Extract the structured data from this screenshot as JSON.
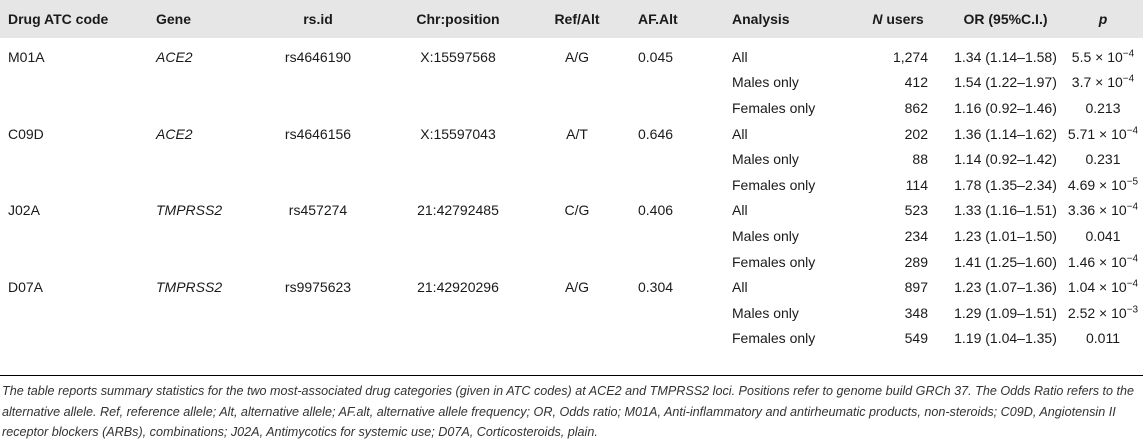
{
  "headers": {
    "drug": "Drug ATC code",
    "gene": "Gene",
    "rsid": "rs.id",
    "chrpos": "Chr:position",
    "refalt": "Ref/Alt",
    "afalt": "AF.Alt",
    "analysis": "Analysis",
    "nusers_n": "N",
    "nusers_rest": " users",
    "or": "OR (95%C.I.)",
    "p": "p"
  },
  "groups": [
    {
      "drug": "M01A",
      "gene": "ACE2",
      "rsid": "rs4646190",
      "chrpos": "X:15597568",
      "refalt": "A/G",
      "afalt": "0.045",
      "rows": [
        {
          "analysis": "All",
          "n": "1,274",
          "or": "1.34 (1.14–1.58)",
          "p": "5.5 × 10",
          "p_exp": "−4"
        },
        {
          "analysis": "Males only",
          "n": "412",
          "or": "1.54 (1.22–1.97)",
          "p": "3.7 × 10",
          "p_exp": "−4"
        },
        {
          "analysis": "Females only",
          "n": "862",
          "or": "1.16 (0.92–1.46)",
          "p": "0.213",
          "p_exp": ""
        }
      ]
    },
    {
      "drug": "C09D",
      "gene": "ACE2",
      "rsid": "rs4646156",
      "chrpos": "X:15597043",
      "refalt": "A/T",
      "afalt": "0.646",
      "rows": [
        {
          "analysis": "All",
          "n": "202",
          "or": "1.36 (1.14–1.62)",
          "p": "5.71 × 10",
          "p_exp": "−4"
        },
        {
          "analysis": "Males only",
          "n": "88",
          "or": "1.14 (0.92–1.42)",
          "p": "0.231",
          "p_exp": ""
        },
        {
          "analysis": "Females only",
          "n": "114",
          "or": "1.78 (1.35–2.34)",
          "p": "4.69 × 10",
          "p_exp": "−5"
        }
      ]
    },
    {
      "drug": "J02A",
      "gene": "TMPRSS2",
      "rsid": "rs457274",
      "chrpos": "21:42792485",
      "refalt": "C/G",
      "afalt": "0.406",
      "rows": [
        {
          "analysis": "All",
          "n": "523",
          "or": "1.33 (1.16–1.51)",
          "p": "3.36 × 10",
          "p_exp": "−4"
        },
        {
          "analysis": "Males only",
          "n": "234",
          "or": "1.23 (1.01–1.50)",
          "p": "0.041",
          "p_exp": ""
        },
        {
          "analysis": "Females only",
          "n": "289",
          "or": "1.41 (1.25–1.60)",
          "p": "1.46 × 10",
          "p_exp": "−4"
        }
      ]
    },
    {
      "drug": "D07A",
      "gene": "TMPRSS2",
      "rsid": "rs9975623",
      "chrpos": "21:42920296",
      "refalt": "A/G",
      "afalt": "0.304",
      "rows": [
        {
          "analysis": "All",
          "n": "897",
          "or": "1.23 (1.07–1.36)",
          "p": "1.04 × 10",
          "p_exp": "−4"
        },
        {
          "analysis": "Males only",
          "n": "348",
          "or": "1.29 (1.09–1.51)",
          "p": "2.52 × 10",
          "p_exp": "−3"
        },
        {
          "analysis": "Females only",
          "n": "549",
          "or": "1.19 (1.04–1.35)",
          "p": "0.011",
          "p_exp": ""
        }
      ]
    }
  ],
  "caption": "The table reports summary statistics for the two most-associated drug categories (given in ATC codes) at ACE2 and TMPRSS2 loci. Positions refer to genome build GRCh 37. The Odds Ratio refers to the alternative allele. Ref, reference allele; Alt, alternative allele; AF.alt, alternative allele frequency; OR, Odds ratio; M01A, Anti-inflammatory and antirheumatic products, non-steroids; C09D, Angiotensin II receptor blockers (ARBs), combinations; J02A, Antimycotics for systemic use; D07A, Corticosteroids, plain."
}
